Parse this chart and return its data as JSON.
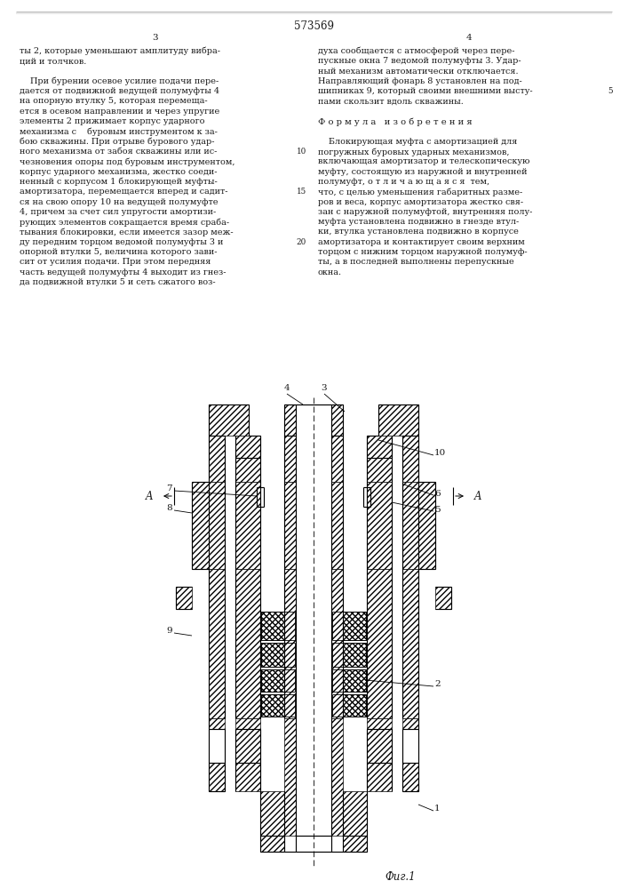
{
  "patent_number": "573569",
  "page_left": "3",
  "page_right": "4",
  "col1_lines": [
    "ты 2, которые уменьшают амплитуду вибра-",
    "ций и толчков.",
    "",
    "    При бурении осевое усилие подачи пере-",
    "дается от подвижной ведущей полумуфты 4",
    "на опорную втулку 5, которая перемеща-",
    "ется в осевом направлении и через упругие",
    "элементы 2 прижимает корпус ударного",
    "механизма с    буровым инструментом к за-",
    "бою скважины. При отрыве бурового удар-",
    "ного механизма от забоя скважины или ис-",
    "чезновения опоры под буровым инструментом,",
    "корпус ударного механизма, жестко соеди-",
    "ненный с корпусом 1 блокирующей муфты-",
    "амортизатора, перемещается вперед и садит-",
    "ся на свою опору 10 на ведущей полумуфте",
    "4, причем за счет сил упругости амортизи-",
    "рующих элементов сокращается время сраба-",
    "тывания блокировки, если имеется зазор меж-",
    "ду передним торцом ведомой полумуфты 3 и",
    "опорной втулки 5, величина которого зави-",
    "сит от усилия подачи. При этом передняя",
    "часть ведущей полумуфты 4 выходит из гнез-",
    "да подвижной втулки 5 и сеть сжатого воз-"
  ],
  "col1_margin_nums": {
    "10": 10,
    "15": 14,
    "20": 19
  },
  "col2_lines": [
    "духа сообщается с атмосферой через пере-",
    "пускные окна 7 ведомой полумуфты 3. Удар-",
    "ный механизм автоматически отключается.",
    "Направляющий фонарь 8 установлен на под-",
    "шипниках 9, который своими внешними высту-",
    "пами скользит вдоль скважины.",
    "",
    "Ф о р м у л а   и з о б р е т е н и я",
    "",
    "    Блокирующая муфта с амортизацией для",
    "погружных буровых ударных механизмов,",
    "включающая амортизатор и телескопическую",
    "муфту, состоящую из наружной и внутренней",
    "полумуфт, о т л и ч а ю щ а я с я  тем,",
    "что, с целью уменьшения габаритных разме-",
    "ров и веса, корпус амортизатора жестко свя-",
    "зан с наружной полумуфтой, внутренняя полу-",
    "муфта установлена подвижно в гнезде втул-",
    "ки, втулка установлена подвижно в корпусе",
    "амортизатора и контактирует своим верхним",
    "торцом с нижним торцом наружной полумуф-",
    "ты, а в последней выполнены перепускные",
    "окна."
  ],
  "col2_margin_nums": {
    "5": 4
  },
  "fig_label": "Фиг.1",
  "background_color": "#ffffff",
  "text_color": "#1a1a1a",
  "line_color": "#000000"
}
